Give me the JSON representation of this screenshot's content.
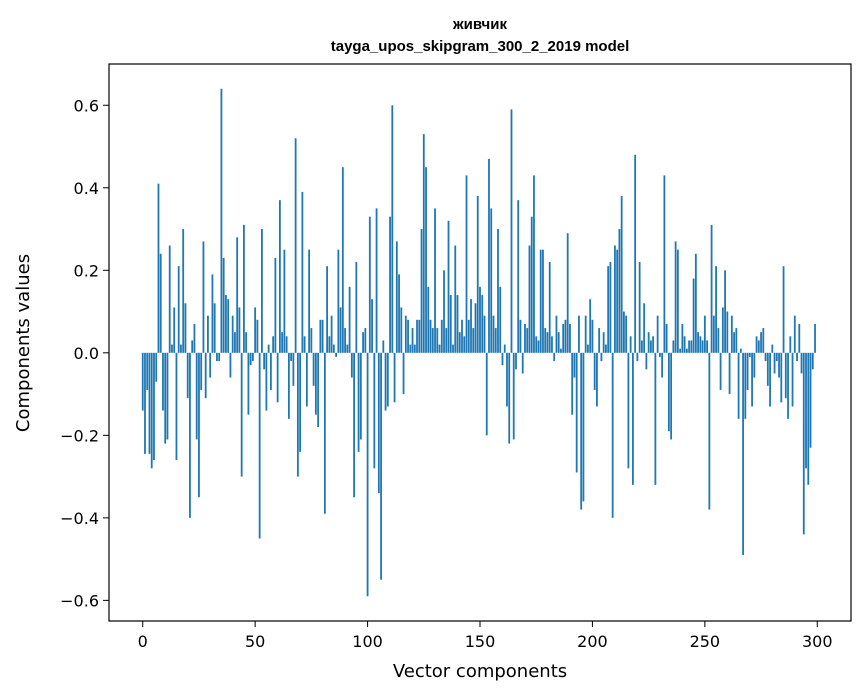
{
  "chart_data": {
    "type": "bar",
    "title": "живчик",
    "subtitle": "tayga_upos_skipgram_300_2_2019 model",
    "xlabel": "Vector components",
    "ylabel": "Components values",
    "xlim": [
      -15,
      315
    ],
    "ylim": [
      -0.65,
      0.7
    ],
    "xticks": [
      0,
      50,
      100,
      150,
      200,
      250,
      300
    ],
    "yticks": [
      -0.6,
      -0.4,
      -0.2,
      0.0,
      0.2,
      0.4,
      0.6
    ],
    "ytick_labels": [
      "−0.6",
      "−0.4",
      "−0.2",
      "0.0",
      "0.2",
      "0.4",
      "0.6"
    ],
    "grid": false,
    "bar_color": "#1f77b4",
    "x": [
      0,
      1,
      2,
      3,
      4,
      5,
      6,
      7,
      8,
      9,
      10,
      11,
      12,
      13,
      14,
      15,
      16,
      17,
      18,
      19,
      20,
      21,
      22,
      23,
      24,
      25,
      26,
      27,
      28,
      29,
      30,
      31,
      32,
      33,
      34,
      35,
      36,
      37,
      38,
      39,
      40,
      41,
      42,
      43,
      44,
      45,
      46,
      47,
      48,
      49,
      50,
      51,
      52,
      53,
      54,
      55,
      56,
      57,
      58,
      59,
      60,
      61,
      62,
      63,
      64,
      65,
      66,
      67,
      68,
      69,
      70,
      71,
      72,
      73,
      74,
      75,
      76,
      77,
      78,
      79,
      80,
      81,
      82,
      83,
      84,
      85,
      86,
      87,
      88,
      89,
      90,
      91,
      92,
      93,
      94,
      95,
      96,
      97,
      98,
      99,
      100,
      101,
      102,
      103,
      104,
      105,
      106,
      107,
      108,
      109,
      110,
      111,
      112,
      113,
      114,
      115,
      116,
      117,
      118,
      119,
      120,
      121,
      122,
      123,
      124,
      125,
      126,
      127,
      128,
      129,
      130,
      131,
      132,
      133,
      134,
      135,
      136,
      137,
      138,
      139,
      140,
      141,
      142,
      143,
      144,
      145,
      146,
      147,
      148,
      149,
      150,
      151,
      152,
      153,
      154,
      155,
      156,
      157,
      158,
      159,
      160,
      161,
      162,
      163,
      164,
      165,
      166,
      167,
      168,
      169,
      170,
      171,
      172,
      173,
      174,
      175,
      176,
      177,
      178,
      179,
      180,
      181,
      182,
      183,
      184,
      185,
      186,
      187,
      188,
      189,
      190,
      191,
      192,
      193,
      194,
      195,
      196,
      197,
      198,
      199,
      200,
      201,
      202,
      203,
      204,
      205,
      206,
      207,
      208,
      209,
      210,
      211,
      212,
      213,
      214,
      215,
      216,
      217,
      218,
      219,
      220,
      221,
      222,
      223,
      224,
      225,
      226,
      227,
      228,
      229,
      230,
      231,
      232,
      233,
      234,
      235,
      236,
      237,
      238,
      239,
      240,
      241,
      242,
      243,
      244,
      245,
      246,
      247,
      248,
      249,
      250,
      251,
      252,
      253,
      254,
      255,
      256,
      257,
      258,
      259,
      260,
      261,
      262,
      263,
      264,
      265,
      266,
      267,
      268,
      269,
      270,
      271,
      272,
      273,
      274,
      275,
      276,
      277,
      278,
      279,
      280,
      281,
      282,
      283,
      284,
      285,
      286,
      287,
      288,
      289,
      290,
      291,
      292,
      293,
      294,
      295,
      296,
      297,
      298,
      299
    ],
    "values": [
      -0.14,
      -0.245,
      -0.09,
      -0.245,
      -0.28,
      -0.26,
      -0.07,
      0.41,
      0.24,
      -0.14,
      -0.22,
      -0.21,
      0.26,
      0.02,
      0.11,
      -0.26,
      0.21,
      0.02,
      0.3,
      0.12,
      -0.11,
      -0.4,
      0.03,
      0.07,
      -0.21,
      -0.35,
      -0.09,
      0.27,
      -0.11,
      0.09,
      -0.06,
      0.19,
      0.12,
      -0.02,
      -0.02,
      0.64,
      0.23,
      0.14,
      0.13,
      -0.06,
      0.09,
      0.05,
      0.28,
      0.11,
      -0.3,
      0.31,
      0.05,
      -0.15,
      -0.03,
      -0.02,
      0.11,
      0.08,
      -0.45,
      0.3,
      -0.04,
      -0.14,
      0.02,
      -0.09,
      0.04,
      0.23,
      -0.12,
      0.37,
      0.05,
      0.25,
      0.04,
      -0.16,
      -0.02,
      -0.08,
      0.52,
      -0.3,
      -0.24,
      0.39,
      0.04,
      -0.13,
      0.25,
      0.06,
      -0.08,
      -0.15,
      -0.18,
      0.08,
      0.08,
      -0.39,
      0.21,
      0.04,
      0.09,
      0.02,
      -0.01,
      0.25,
      0.11,
      0.45,
      0.06,
      0.02,
      0.16,
      -0.06,
      -0.35,
      0.22,
      -0.24,
      -0.21,
      0.05,
      0.06,
      -0.59,
      0.33,
      0.13,
      -0.28,
      0.35,
      -0.34,
      -0.55,
      0.03,
      -0.14,
      -0.13,
      0.33,
      0.6,
      -0.12,
      0.27,
      0.19,
      0.11,
      -0.1,
      0.09,
      0.08,
      0.02,
      0.06,
      0.02,
      0.08,
      0.08,
      0.3,
      0.53,
      0.45,
      0.16,
      0.08,
      0.06,
      0.35,
      0.06,
      0.02,
      0.08,
      0.2,
      0.06,
      0.32,
      0.14,
      0.02,
      0.26,
      0.14,
      0.05,
      0.08,
      0.04,
      0.43,
      0.08,
      0.13,
      0.06,
      0.12,
      0.38,
      0.16,
      0.14,
      0.09,
      -0.2,
      0.47,
      0.35,
      0.09,
      0.06,
      0.3,
      0.16,
      -0.03,
      0.02,
      -0.13,
      -0.22,
      0.59,
      -0.21,
      -0.04,
      0.37,
      0.08,
      -0.05,
      0.07,
      0.06,
      0.26,
      0.33,
      0.43,
      0.04,
      0.03,
      0.25,
      0.25,
      0.06,
      0.05,
      0.22,
      0.04,
      -0.02,
      0.09,
      0.05,
      0.01,
      0.07,
      0.08,
      0.29,
      0.07,
      -0.15,
      -0.06,
      -0.29,
      0.09,
      -0.38,
      -0.36,
      0.09,
      0.02,
      0.13,
      0.08,
      -0.09,
      -0.13,
      0.06,
      -0.02,
      0.05,
      0.02,
      0.21,
      0.22,
      -0.4,
      0.26,
      0.25,
      0.3,
      0.38,
      0.1,
      0.09,
      -0.28,
      0.04,
      -0.32,
      0.48,
      -0.02,
      0.22,
      0.03,
      0.12,
      -0.04,
      0.05,
      0.03,
      0.04,
      -0.32,
      0.09,
      -0.01,
      -0.06,
      0.43,
      0.07,
      -0.19,
      -0.21,
      0.03,
      0.27,
      0.25,
      0.01,
      0.07,
      0.04,
      0.01,
      0.03,
      0.03,
      0.18,
      0.24,
      0.05,
      0.04,
      0.03,
      0.09,
      0.03,
      -0.38,
      0.31,
      0.09,
      0.21,
      0.06,
      -0.09,
      0.11,
      0.2,
      0.1,
      -0.1,
      0.09,
      0.05,
      0.06,
      -0.16,
      0.01,
      -0.49,
      -0.16,
      -0.09,
      -0.01,
      -0.13,
      -0.06,
      0.04,
      0.03,
      0.05,
      0.06,
      -0.02,
      -0.08,
      -0.13,
      0.02,
      -0.05,
      -0.02,
      -0.06,
      -0.12,
      0.21,
      -0.11,
      -0.16,
      0.04,
      -0.13,
      0.09,
      -0.02,
      0.07,
      -0.05,
      -0.44,
      -0.28,
      -0.32,
      -0.23,
      -0.04,
      0.07
    ]
  }
}
